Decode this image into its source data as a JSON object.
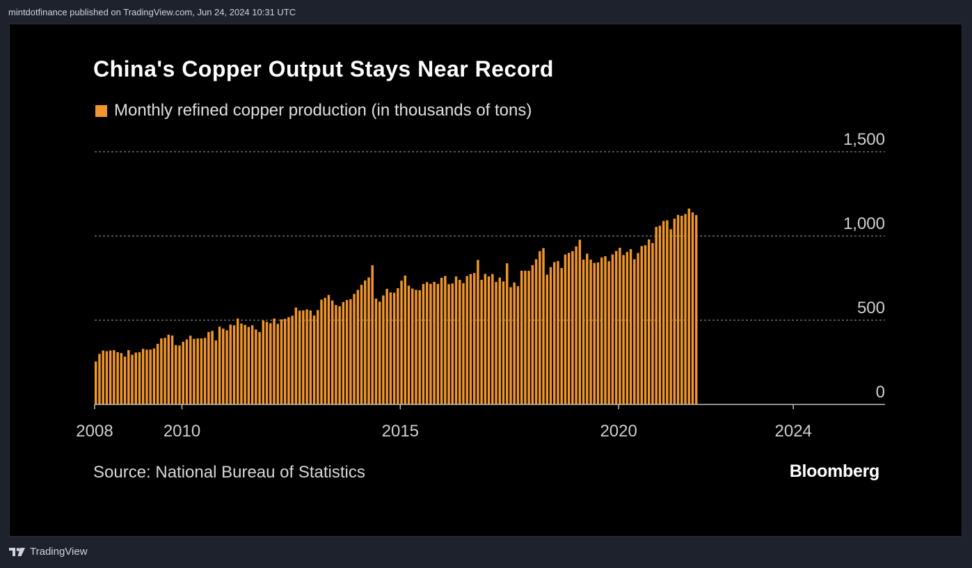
{
  "header": {
    "published": "mintdotfinance published on TradingView.com, Jun 24, 2024 10:31 UTC"
  },
  "footer": {
    "brand": "TradingView"
  },
  "colors": {
    "bar": "#f0962d",
    "gridline": "#6f6f6f",
    "axis": "#bdbdbd",
    "tick": "#d0d0d0"
  },
  "chart_data": {
    "type": "bar",
    "title": "China's Copper Output Stays Near Record",
    "legend": "Monthly refined copper production (in thousands of tons)",
    "source": "Source: National Bureau of Statistics",
    "brand": "Bloomberg",
    "ylim": [
      0,
      1500
    ],
    "yticks": [
      0,
      500,
      1000,
      1500
    ],
    "ytick_labels": [
      "0",
      "500",
      "1,000",
      "1,500"
    ],
    "grid": true,
    "xlim": [
      2008,
      2026.1
    ],
    "xticks": [
      2008,
      2010,
      2015,
      2020,
      2024
    ],
    "xtick_labels": [
      "2008",
      "2010",
      "2015",
      "2020",
      "2024"
    ],
    "x_start": "2008-01",
    "frequency": "monthly",
    "values": [
      255,
      300,
      320,
      316,
      320,
      322,
      310,
      305,
      284,
      322,
      295,
      308,
      310,
      330,
      325,
      326,
      332,
      360,
      392,
      395,
      414,
      409,
      352,
      350,
      372,
      386,
      408,
      389,
      392,
      392,
      395,
      430,
      437,
      380,
      462,
      450,
      440,
      474,
      470,
      510,
      480,
      472,
      460,
      470,
      445,
      430,
      498,
      490,
      482,
      510,
      478,
      505,
      508,
      518,
      527,
      575,
      557,
      558,
      564,
      558,
      528,
      560,
      622,
      633,
      650,
      617,
      590,
      583,
      608,
      620,
      625,
      656,
      680,
      710,
      736,
      754,
      826,
      628,
      610,
      647,
      686,
      665,
      663,
      690,
      735,
      765,
      705,
      688,
      680,
      678,
      715,
      726,
      716,
      728,
      716,
      752,
      763,
      714,
      718,
      760,
      740,
      720,
      762,
      774,
      780,
      858,
      740,
      775,
      760,
      774,
      727,
      753,
      730,
      838,
      696,
      724,
      702,
      794,
      794,
      793,
      827,
      862,
      910,
      928,
      770,
      815,
      845,
      851,
      810,
      890,
      900,
      910,
      938,
      978,
      860,
      895,
      860,
      840,
      843,
      872,
      880,
      850,
      890,
      911,
      930,
      887,
      905,
      922,
      862,
      899,
      940,
      945,
      980,
      958,
      1054,
      1061,
      1089,
      1093,
      1040,
      1103,
      1125,
      1120,
      1130,
      1163,
      1140,
      1124
    ]
  }
}
